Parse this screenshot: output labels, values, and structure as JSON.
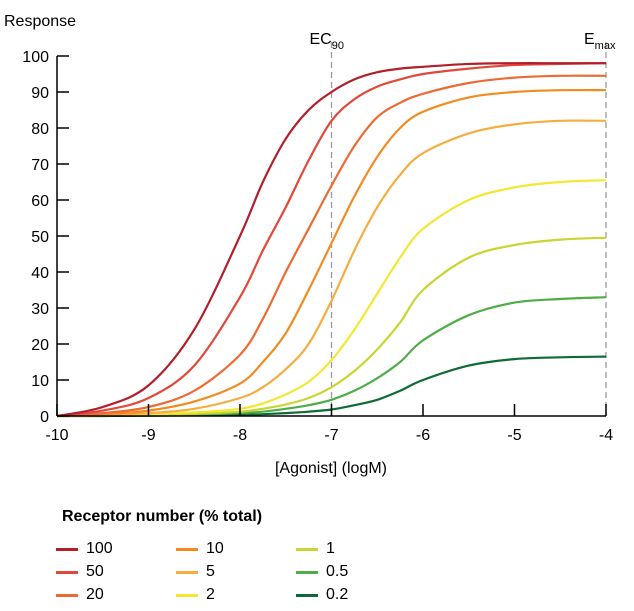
{
  "chart_data": {
    "type": "line",
    "title": "",
    "xlabel": "[Agonist] (logM)",
    "ylabel": "Response",
    "xlim": [
      -10,
      -4
    ],
    "ylim": [
      0,
      100
    ],
    "x_ticks": [
      "-10",
      "-9",
      "-8",
      "-7",
      "-6",
      "-5",
      "-4"
    ],
    "y_ticks": [
      "0",
      "10",
      "20",
      "30",
      "40",
      "50",
      "60",
      "70",
      "80",
      "90",
      "100"
    ],
    "grid": false,
    "annotations": [
      {
        "label": "EC",
        "subscript": "90",
        "x": -7
      },
      {
        "label": "E",
        "subscript": "max",
        "x": -4
      }
    ],
    "legend": {
      "title": "Receptor number (% total)",
      "placement": "bottom",
      "columns": 3
    },
    "series": [
      {
        "name": "100",
        "color": "#b11f2a",
        "x": [
          -10,
          -9.5,
          -9,
          -8.5,
          -8,
          -7.75,
          -7.5,
          -7.25,
          -7,
          -6.75,
          -6.5,
          -6.25,
          -6,
          -5.5,
          -5,
          -4.5,
          -4
        ],
        "values": [
          0,
          2.5,
          8.5,
          24,
          50,
          65,
          77,
          85,
          90,
          93.5,
          95.5,
          96.5,
          97,
          97.8,
          98,
          98,
          98
        ]
      },
      {
        "name": "50",
        "color": "#e2483a",
        "x": [
          -10,
          -9.5,
          -9,
          -8.5,
          -8,
          -7.75,
          -7.5,
          -7.25,
          -7,
          -6.75,
          -6.5,
          -6.25,
          -6,
          -5.5,
          -5,
          -4.5,
          -4
        ],
        "values": [
          0,
          1.5,
          5,
          14,
          33,
          46,
          58,
          71,
          82,
          88,
          91.5,
          93.5,
          95,
          96.5,
          97.5,
          97.8,
          98
        ]
      },
      {
        "name": "20",
        "color": "#ee6a33",
        "x": [
          -10,
          -9.5,
          -9,
          -8.5,
          -8,
          -7.75,
          -7.5,
          -7.25,
          -7,
          -6.75,
          -6.5,
          -6.25,
          -6,
          -5.5,
          -5,
          -4.5,
          -4
        ],
        "values": [
          0,
          0.8,
          2.5,
          7,
          17,
          27,
          40,
          52,
          64,
          75,
          83,
          87,
          89.5,
          92.5,
          94,
          94.5,
          94.5
        ]
      },
      {
        "name": "10",
        "color": "#f28a20",
        "x": [
          -10,
          -9.5,
          -9,
          -8.5,
          -8,
          -7.75,
          -7.5,
          -7.25,
          -7,
          -6.75,
          -6.5,
          -6.25,
          -6,
          -5.5,
          -5,
          -4.5,
          -4
        ],
        "values": [
          0,
          0.5,
          1.5,
          4,
          9,
          15,
          23,
          35,
          48,
          61,
          72,
          80,
          84.5,
          88.5,
          90,
          90.5,
          90.5
        ]
      },
      {
        "name": "5",
        "color": "#f5ad3f",
        "x": [
          -10,
          -9.5,
          -9,
          -8.5,
          -8,
          -7.75,
          -7.5,
          -7.25,
          -7,
          -6.75,
          -6.5,
          -6.25,
          -6,
          -5.5,
          -5,
          -4.5,
          -4
        ],
        "values": [
          0,
          0.3,
          0.8,
          2,
          5,
          8,
          13,
          20,
          32,
          46,
          58,
          67,
          73,
          78.5,
          81,
          82,
          82
        ]
      },
      {
        "name": "2",
        "color": "#f2e830",
        "x": [
          -10,
          -9.5,
          -9,
          -8.5,
          -8,
          -7.75,
          -7.5,
          -7.25,
          -7,
          -6.75,
          -6.5,
          -6.25,
          -6,
          -5.5,
          -5,
          -4.5,
          -4
        ],
        "values": [
          0,
          0.2,
          0.5,
          1,
          2,
          3.5,
          6,
          9.5,
          15.5,
          24,
          34,
          44,
          52,
          60,
          63.5,
          65,
          65.5
        ]
      },
      {
        "name": "1",
        "color": "#c9d532",
        "x": [
          -10,
          -9.5,
          -9,
          -8.5,
          -8,
          -7.75,
          -7.5,
          -7.25,
          -7,
          -6.75,
          -6.5,
          -6.25,
          -6,
          -5.5,
          -5,
          -4.5,
          -4
        ],
        "values": [
          0,
          0.1,
          0.3,
          0.6,
          1.2,
          2,
          3.2,
          5,
          8,
          12.5,
          18.5,
          26,
          35,
          44,
          47.5,
          49,
          49.5
        ]
      },
      {
        "name": "0.5",
        "color": "#4fad49",
        "x": [
          -10,
          -9.5,
          -9,
          -8.5,
          -8,
          -7.75,
          -7.5,
          -7.25,
          -7,
          -6.75,
          -6.5,
          -6.25,
          -6,
          -5.5,
          -5,
          -4.5,
          -4
        ],
        "values": [
          0,
          0.1,
          0.2,
          0.4,
          0.8,
          1.2,
          2,
          3,
          4.5,
          7,
          10.5,
          15,
          21,
          28,
          31.5,
          32.5,
          33
        ]
      },
      {
        "name": "0.2",
        "color": "#0d6b36",
        "x": [
          -10,
          -9.5,
          -9,
          -8.5,
          -8,
          -7.75,
          -7.5,
          -7.25,
          -7,
          -6.75,
          -6.5,
          -6.25,
          -6,
          -5.5,
          -5,
          -4.5,
          -4
        ],
        "values": [
          0,
          0,
          0.1,
          0.2,
          0.3,
          0.5,
          0.8,
          1.2,
          1.8,
          3,
          4.5,
          7,
          10,
          14,
          15.8,
          16.3,
          16.5
        ]
      }
    ]
  }
}
